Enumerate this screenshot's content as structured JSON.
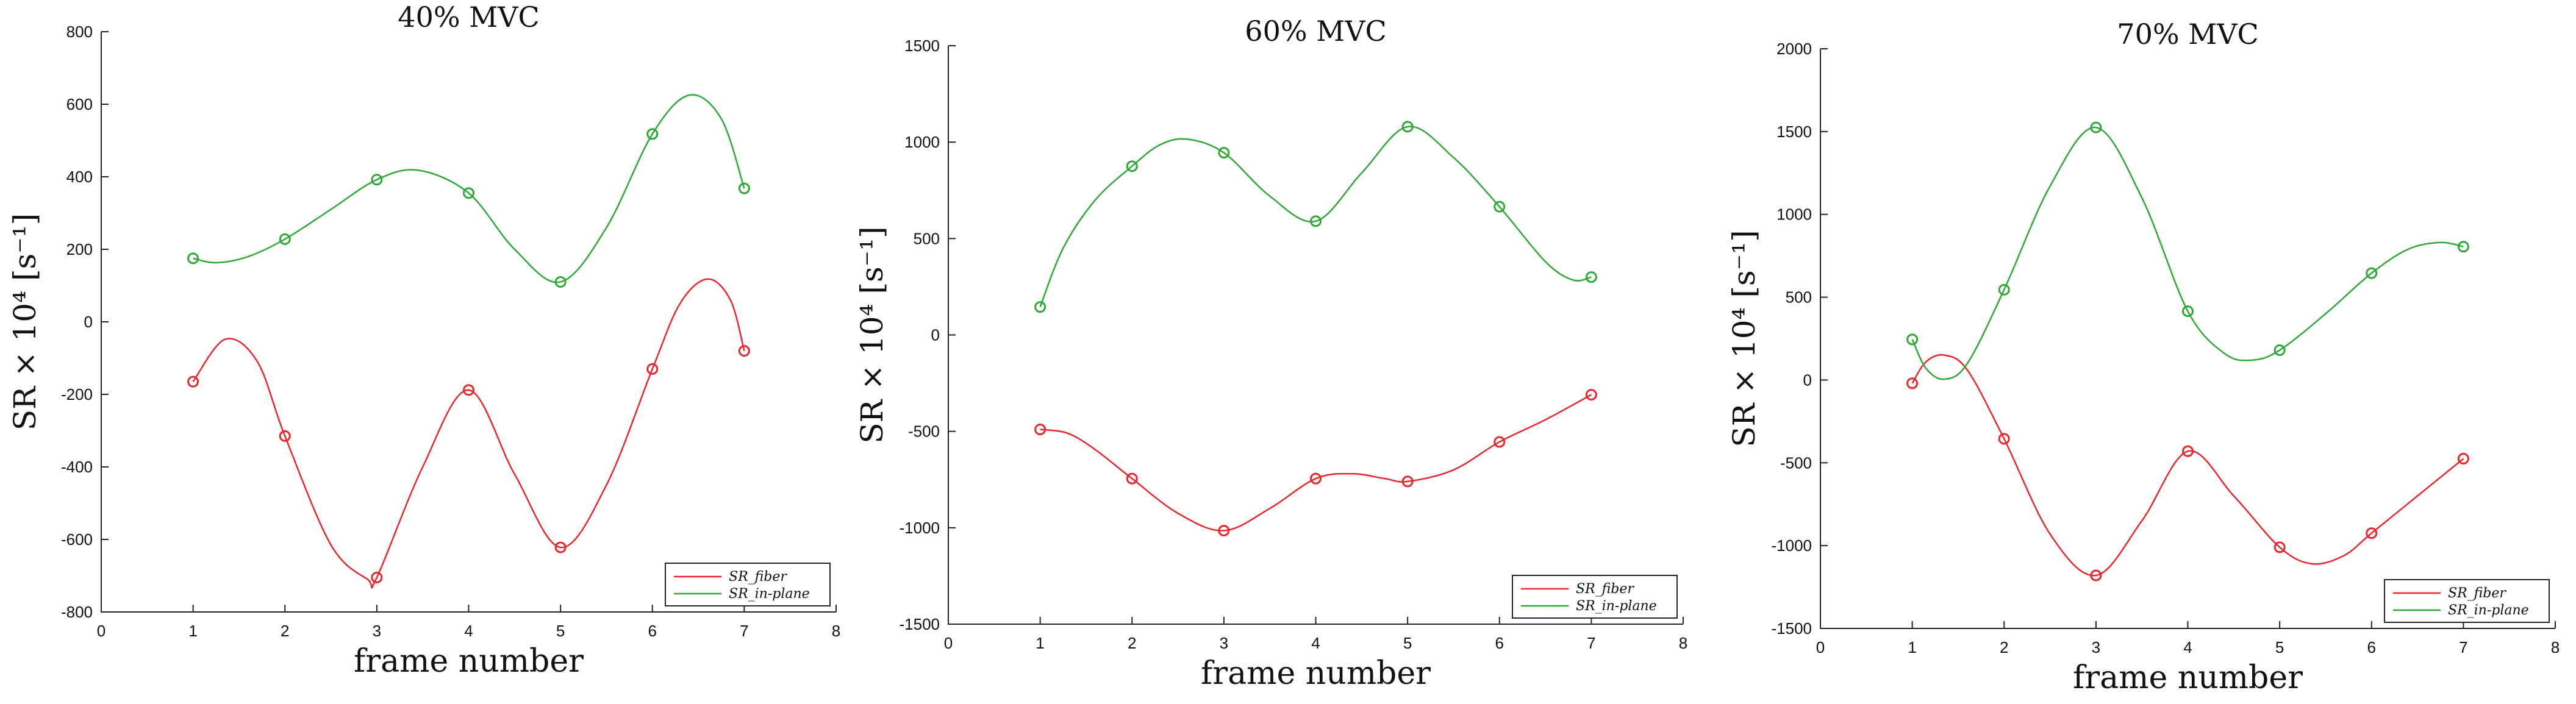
{
  "chart_data": [
    {
      "type": "line",
      "title": "40% MVC",
      "xlabel": "frame number",
      "ylabel": "SR   × 10⁴   [s⁻¹]",
      "xlim": [
        0,
        8
      ],
      "ylim": [
        -800,
        800
      ],
      "xticks": [
        0,
        1,
        2,
        3,
        4,
        5,
        6,
        7,
        8
      ],
      "yticks": [
        -800,
        -600,
        -400,
        -200,
        0,
        200,
        400,
        600,
        800
      ],
      "legend_position": "bottom-right",
      "series": [
        {
          "name": "SR_fiber",
          "color": "#e8262b",
          "x": [
            1,
            2,
            3,
            4,
            5,
            6,
            7
          ],
          "values": [
            -165,
            -315,
            -705,
            -188,
            -622,
            -130,
            -80
          ],
          "curve_x": [
            1,
            1.35,
            1.7,
            2,
            2.5,
            2.9,
            3,
            3.5,
            4,
            4.5,
            5,
            5.5,
            6,
            6.3,
            6.6,
            6.85,
            7
          ],
          "curve_y": [
            -165,
            -48,
            -110,
            -315,
            -615,
            -710,
            -705,
            -400,
            -188,
            -420,
            -622,
            -450,
            -130,
            50,
            118,
            60,
            -80
          ]
        },
        {
          "name": "SR_in-plane",
          "color": "#2ea835",
          "x": [
            1,
            2,
            3,
            4,
            5,
            6,
            7
          ],
          "values": [
            175,
            228,
            392,
            355,
            110,
            518,
            368
          ],
          "curve_x": [
            1,
            1.25,
            1.6,
            2,
            2.5,
            3,
            3.45,
            4,
            4.5,
            5,
            5.5,
            6,
            6.4,
            6.75,
            7
          ],
          "curve_y": [
            175,
            163,
            180,
            228,
            310,
            392,
            418,
            355,
            200,
            110,
            260,
            518,
            625,
            560,
            368
          ]
        }
      ]
    },
    {
      "type": "line",
      "title": "60% MVC",
      "xlabel": "frame number",
      "ylabel": "SR   × 10⁴   [s⁻¹]",
      "xlim": [
        0,
        8
      ],
      "ylim": [
        -1500,
        1500
      ],
      "xticks": [
        0,
        1,
        2,
        3,
        4,
        5,
        6,
        7,
        8
      ],
      "yticks": [
        -1500,
        -1000,
        -500,
        0,
        500,
        1000,
        1500
      ],
      "legend_position": "bottom-right",
      "series": [
        {
          "name": "SR_fiber",
          "color": "#e8262b",
          "x": [
            1,
            2,
            3,
            4,
            5,
            6,
            7
          ],
          "values": [
            -490,
            -745,
            -1015,
            -745,
            -760,
            -555,
            -310
          ],
          "curve_x": [
            1,
            1.3,
            1.6,
            2,
            2.5,
            3,
            3.5,
            4,
            4.4,
            4.75,
            5,
            5.5,
            6,
            6.5,
            7
          ],
          "curve_y": [
            -490,
            -510,
            -595,
            -745,
            -925,
            -1015,
            -900,
            -745,
            -720,
            -745,
            -760,
            -700,
            -555,
            -440,
            -310
          ]
        },
        {
          "name": "SR_in-plane",
          "color": "#2ea835",
          "x": [
            1,
            2,
            3,
            4,
            5,
            6,
            7
          ],
          "values": [
            145,
            875,
            945,
            590,
            1080,
            665,
            300
          ],
          "curve_x": [
            1,
            1.25,
            1.6,
            2,
            2.3,
            2.6,
            3,
            3.5,
            4,
            4.5,
            5,
            5.5,
            6,
            6.5,
            6.8,
            7
          ],
          "curve_y": [
            145,
            450,
            700,
            875,
            985,
            1015,
            945,
            720,
            590,
            840,
            1080,
            920,
            665,
            380,
            285,
            300
          ]
        }
      ]
    },
    {
      "type": "line",
      "title": "70% MVC",
      "xlabel": "frame number",
      "ylabel": "SR   × 10⁴   [s⁻¹]",
      "xlim": [
        0,
        8
      ],
      "ylim": [
        -1500,
        2000
      ],
      "xticks": [
        0,
        1,
        2,
        3,
        4,
        5,
        6,
        7,
        8
      ],
      "yticks": [
        -1500,
        -1000,
        -500,
        0,
        500,
        1000,
        1500,
        2000
      ],
      "legend_position": "bottom-right",
      "series": [
        {
          "name": "SR_fiber",
          "color": "#e8262b",
          "x": [
            1,
            2,
            3,
            4,
            5,
            6,
            7
          ],
          "values": [
            -20,
            -355,
            -1180,
            -430,
            -1010,
            -925,
            -475
          ],
          "curve_x": [
            1,
            1.15,
            1.35,
            1.6,
            2,
            2.5,
            3,
            3.5,
            4,
            4.5,
            5,
            5.35,
            5.7,
            6,
            6.5,
            7
          ],
          "curve_y": [
            -20,
            110,
            150,
            60,
            -355,
            -930,
            -1180,
            -850,
            -430,
            -700,
            -1010,
            -1110,
            -1060,
            -925,
            -700,
            -475
          ]
        },
        {
          "name": "SR_in-plane",
          "color": "#2ea835",
          "x": [
            1,
            2,
            3,
            4,
            5,
            6,
            7
          ],
          "values": [
            245,
            545,
            1525,
            415,
            180,
            645,
            805
          ],
          "curve_x": [
            1,
            1.15,
            1.35,
            1.6,
            2,
            2.5,
            3,
            3.5,
            4,
            4.4,
            4.7,
            5,
            5.5,
            6,
            6.4,
            6.75,
            7
          ],
          "curve_y": [
            245,
            70,
            5,
            100,
            545,
            1170,
            1525,
            1100,
            415,
            160,
            120,
            180,
            400,
            645,
            790,
            830,
            805
          ]
        }
      ]
    }
  ]
}
